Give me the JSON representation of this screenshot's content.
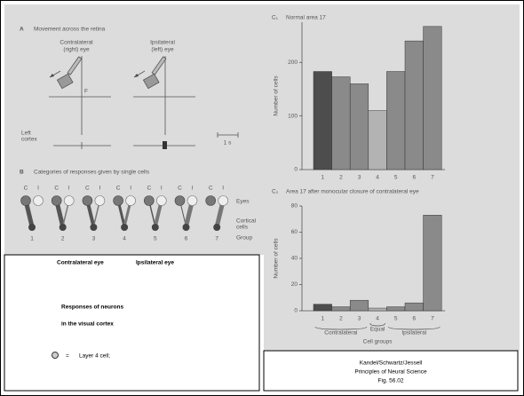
{
  "panel_a": {
    "label": "A",
    "title": "Movement across the retina",
    "contralateral": [
      "Contralateral",
      "(right) eye"
    ],
    "ipsilateral": [
      "Ipsilateral",
      "(left) eye"
    ],
    "fixation": "F",
    "cortex": [
      "Left",
      "cortex"
    ],
    "scale": "1 s"
  },
  "panel_b": {
    "label": "B",
    "title": "Categories of responses given by single cells",
    "eye_labels": [
      "C",
      "I"
    ],
    "groups": [
      "1",
      "2",
      "3",
      "4",
      "5",
      "6",
      "7"
    ],
    "eyes": "Eyes",
    "cells": [
      "Cortical",
      "cells"
    ],
    "group": "Group"
  },
  "chart_data": [
    {
      "type": "bar",
      "panel": "C₁",
      "title": "Normal area 17",
      "y_label": "Number of cells",
      "categories": [
        "1",
        "2",
        "3",
        "4",
        "5",
        "6",
        "7"
      ],
      "values": [
        183,
        173,
        160,
        110,
        183,
        240,
        267
      ],
      "colors": [
        "#4d4d4d",
        "#8a8a8a",
        "#8a8a8a",
        "#b3b3b3",
        "#8a8a8a",
        "#8a8a8a",
        "#8a8a8a"
      ],
      "ylim": [
        0,
        275
      ],
      "yticks": [
        0,
        100,
        200
      ]
    },
    {
      "type": "bar",
      "panel": "C₂",
      "title": "Area 17 after monocular closure of contralateral eye",
      "y_label": "Number of cells",
      "categories": [
        "1",
        "2",
        "3",
        "4",
        "5",
        "6",
        "7"
      ],
      "values": [
        5,
        3,
        8,
        2,
        3,
        6,
        73
      ],
      "colors": [
        "#4d4d4d",
        "#8a8a8a",
        "#8a8a8a",
        "#b3b3b3",
        "#8a8a8a",
        "#8a8a8a",
        "#8a8a8a"
      ],
      "ylim": [
        0,
        80
      ],
      "yticks": [
        0,
        20,
        40,
        60,
        80
      ],
      "group_labels": [
        "Contralateral",
        "Equal",
        "Ipsilateral"
      ],
      "x_label": "Cell groups"
    }
  ],
  "legend_box": {
    "contralateral": "Contralateral eye",
    "ipsilateral": "Ipsilateral eye",
    "title": [
      "Responses of neurons",
      "in the visual cortex"
    ],
    "equals": "=",
    "note": "Layer 4 cell;"
  },
  "citation": [
    "Kandel/Schwartz/Jessell",
    "Principles of Neural Science",
    "Fig. 56.02"
  ]
}
